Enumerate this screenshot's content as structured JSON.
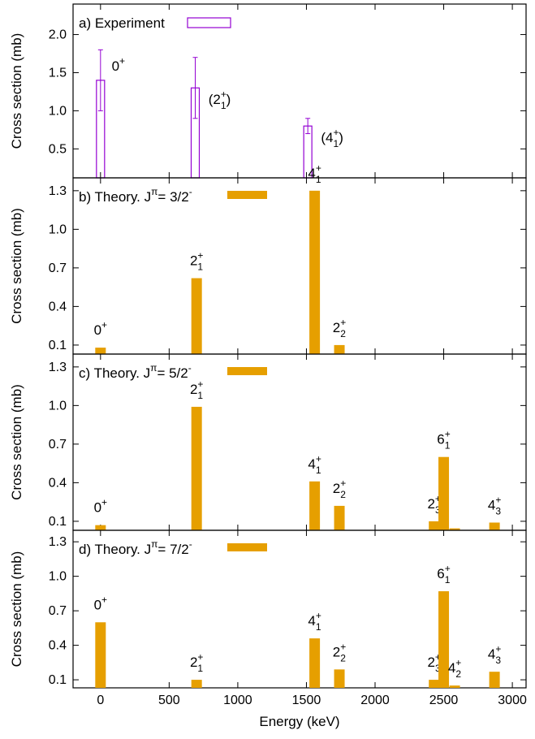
{
  "colors": {
    "experiment": "#9400d3",
    "theory": "#e69f00",
    "axis": "#000000"
  },
  "shared_x": {
    "label": "Energy (keV)",
    "ticks": [
      0,
      500,
      1000,
      1500,
      2000,
      2500,
      3000
    ],
    "xlim": [
      -200,
      3100
    ]
  },
  "chart_data": [
    {
      "type": "bar",
      "panel_label": "a)  Experiment",
      "ylabel": "Cross section (mb)",
      "ylim": [
        0.12,
        2.4
      ],
      "yticks": [
        0.5,
        1.0,
        1.5,
        2.0
      ],
      "ytick_labels": [
        "0.5",
        "1.0",
        "1.5",
        "2.0"
      ],
      "bar_style": "outline-with-errorbars",
      "series": [
        {
          "name": "Experiment",
          "points": [
            {
              "x": 0,
              "y": 1.4,
              "err": 0.4,
              "base": "0",
              "sup": "+",
              "sub": "",
              "paren": false
            },
            {
              "x": 690,
              "y": 1.3,
              "err": 0.4,
              "base": "2",
              "sup": "+",
              "sub": "1",
              "paren": true
            },
            {
              "x": 1510,
              "y": 0.8,
              "err": 0.1,
              "base": "4",
              "sup": "+",
              "sub": "1",
              "paren": true
            }
          ]
        }
      ]
    },
    {
      "type": "bar",
      "panel_label": "b) Theory.  J",
      "jpi": "= 3/2",
      "ylabel": "Cross section (mb)",
      "ylim": [
        0.03,
        1.4
      ],
      "yticks": [
        0.1,
        0.4,
        0.7,
        1.0,
        1.3
      ],
      "ytick_labels": [
        "0.1",
        "0.4",
        "0.7",
        "1.0",
        "1.3"
      ],
      "bar_style": "filled",
      "series": [
        {
          "name": "",
          "points": [
            {
              "x": 0,
              "y": 0.08,
              "base": "0",
              "sup": "+",
              "sub": ""
            },
            {
              "x": 700,
              "y": 0.62,
              "base": "2",
              "sup": "+",
              "sub": "1"
            },
            {
              "x": 1560,
              "y": 1.3,
              "base": "4",
              "sup": "+",
              "sub": "1"
            },
            {
              "x": 1740,
              "y": 0.1,
              "base": "2",
              "sup": "+",
              "sub": "2"
            }
          ]
        }
      ]
    },
    {
      "type": "bar",
      "panel_label": "c) Theory.  J",
      "jpi": "= 5/2",
      "ylabel": "Cross section (mb)",
      "ylim": [
        0.03,
        1.4
      ],
      "yticks": [
        0.1,
        0.4,
        0.7,
        1.0,
        1.3
      ],
      "ytick_labels": [
        "0.1",
        "0.4",
        "0.7",
        "1.0",
        "1.3"
      ],
      "bar_style": "filled",
      "series": [
        {
          "name": "",
          "points": [
            {
              "x": 0,
              "y": 0.07,
              "base": "0",
              "sup": "+",
              "sub": ""
            },
            {
              "x": 700,
              "y": 0.99,
              "base": "2",
              "sup": "+",
              "sub": "1"
            },
            {
              "x": 1560,
              "y": 0.41,
              "base": "4",
              "sup": "+",
              "sub": "1"
            },
            {
              "x": 1740,
              "y": 0.22,
              "base": "2",
              "sup": "+",
              "sub": "2"
            },
            {
              "x": 2430,
              "y": 0.1,
              "base": "2",
              "sup": "+",
              "sub": "3"
            },
            {
              "x": 2500,
              "y": 0.6,
              "base": "6",
              "sup": "+",
              "sub": "1"
            },
            {
              "x": 2580,
              "y": 0.045,
              "base": "",
              "sup": "",
              "sub": ""
            },
            {
              "x": 2870,
              "y": 0.09,
              "base": "4",
              "sup": "+",
              "sub": "3"
            }
          ]
        }
      ]
    },
    {
      "type": "bar",
      "panel_label": "d) Theory.  J",
      "jpi": "= 7/2",
      "ylabel": "Cross section (mb)",
      "ylim": [
        0.03,
        1.4
      ],
      "yticks": [
        0.1,
        0.4,
        0.7,
        1.0,
        1.3
      ],
      "ytick_labels": [
        "0.1",
        "0.4",
        "0.7",
        "1.0",
        "1.3"
      ],
      "bar_style": "filled",
      "series": [
        {
          "name": "",
          "points": [
            {
              "x": 0,
              "y": 0.6,
              "base": "0",
              "sup": "+",
              "sub": ""
            },
            {
              "x": 700,
              "y": 0.1,
              "base": "2",
              "sup": "+",
              "sub": "1"
            },
            {
              "x": 1560,
              "y": 0.46,
              "base": "4",
              "sup": "+",
              "sub": "1"
            },
            {
              "x": 1740,
              "y": 0.19,
              "base": "2",
              "sup": "+",
              "sub": "2"
            },
            {
              "x": 2430,
              "y": 0.1,
              "base": "2",
              "sup": "+",
              "sub": "3"
            },
            {
              "x": 2500,
              "y": 0.87,
              "base": "6",
              "sup": "+",
              "sub": "1"
            },
            {
              "x": 2580,
              "y": 0.05,
              "base": "4",
              "sup": "+",
              "sub": "2"
            },
            {
              "x": 2870,
              "y": 0.17,
              "base": "4",
              "sup": "+",
              "sub": "3"
            }
          ]
        }
      ]
    }
  ]
}
